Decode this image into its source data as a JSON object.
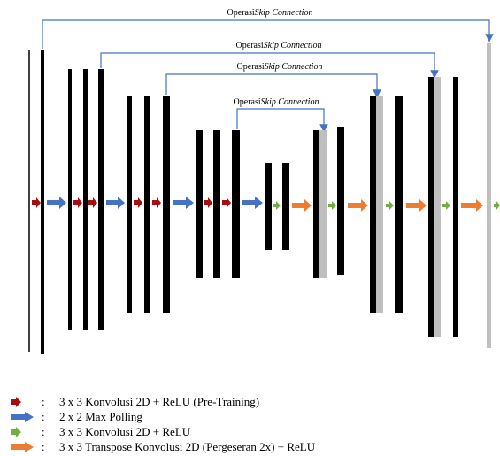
{
  "skip_connections": [
    {
      "prefix": "Operasi",
      "em": "Skip Connection"
    },
    {
      "prefix": "Operasi",
      "em": "Skip Connection"
    },
    {
      "prefix": "Operasi",
      "em": "Skip Connection"
    },
    {
      "prefix": "Operasi",
      "em": "Skip Connection"
    }
  ],
  "legend": [
    {
      "colon": ":",
      "text": "3 x 3 Konvolusi 2D + ReLU (Pre-Training)",
      "icon": "dark-red-arrow-icon",
      "color": "#a50f0f"
    },
    {
      "colon": ":",
      "text": "2 x 2 Max Polling",
      "icon": "blue-arrow-icon",
      "color": "#4472c4"
    },
    {
      "colon": ":",
      "text": "3 x 3 Konvolusi 2D + ReLU",
      "icon": "green-arrow-icon",
      "color": "#70ad47"
    },
    {
      "colon": ":",
      "text": "3 x 3 Transpose Konvolusi 2D (Pergeseran 2x) + ReLU",
      "icon": "orange-arrow-icon",
      "color": "#ed7d31"
    }
  ],
  "colors": {
    "feature_map": "#000000",
    "copied_map": "#bfbfbf",
    "connector": "#4472c4"
  }
}
